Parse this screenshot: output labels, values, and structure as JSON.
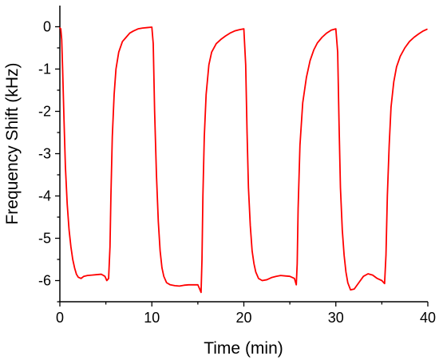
{
  "chart_data": {
    "type": "line",
    "title": "",
    "xlabel": "Time (min)",
    "ylabel": "Frequency Shift (kHz)",
    "xlim": [
      0,
      40
    ],
    "ylim": [
      -6.5,
      0.5
    ],
    "x_ticks": [
      0,
      10,
      20,
      30,
      40
    ],
    "x_tick_labels": [
      "0",
      "10",
      "20",
      "30",
      "40"
    ],
    "y_ticks": [
      0,
      -1,
      -2,
      -3,
      -4,
      -5,
      -6
    ],
    "y_tick_labels": [
      "0",
      "-1",
      "-2",
      "-3",
      "-4",
      "-5",
      "-6"
    ],
    "grid": false,
    "legend": "none",
    "series": [
      {
        "color": "#ff0000",
        "x": [
          0.0,
          0.1,
          0.2,
          0.3,
          0.45,
          0.6,
          0.8,
          1.0,
          1.2,
          1.4,
          1.6,
          1.8,
          2.0,
          2.3,
          2.6,
          3.0,
          3.5,
          4.0,
          4.5,
          4.9,
          5.1,
          5.3,
          5.45,
          5.55,
          5.7,
          5.9,
          6.1,
          6.4,
          6.8,
          7.2,
          7.6,
          8.0,
          8.5,
          9.0,
          9.5,
          10.0,
          10.15,
          10.3,
          10.5,
          10.7,
          10.9,
          11.1,
          11.3,
          11.6,
          12.0,
          12.5,
          13.0,
          13.5,
          14.0,
          14.5,
          15.0,
          15.2,
          15.35,
          15.45,
          15.55,
          15.7,
          15.9,
          16.2,
          16.5,
          17.0,
          17.5,
          18.0,
          18.5,
          19.0,
          19.5,
          20.0,
          20.2,
          20.35,
          20.5,
          20.7,
          20.9,
          21.1,
          21.3,
          21.6,
          22.0,
          22.5,
          23.0,
          23.5,
          24.0,
          24.5,
          25.0,
          25.5,
          25.7,
          25.8,
          25.9,
          26.1,
          26.4,
          26.8,
          27.2,
          27.6,
          28.0,
          28.5,
          29.0,
          29.5,
          30.0,
          30.2,
          30.35,
          30.5,
          30.7,
          30.9,
          31.1,
          31.3,
          31.6,
          32.0,
          32.5,
          33.0,
          33.5,
          34.0,
          34.5,
          35.0,
          35.3,
          35.45,
          35.6,
          35.8,
          36.0,
          36.3,
          36.6,
          37.0,
          37.5,
          38.0,
          38.5,
          39.0,
          39.5,
          39.9
        ],
        "y": [
          -0.03,
          -0.05,
          -0.3,
          -1.0,
          -2.2,
          -3.3,
          -4.2,
          -4.8,
          -5.2,
          -5.5,
          -5.7,
          -5.85,
          -5.92,
          -5.95,
          -5.9,
          -5.88,
          -5.87,
          -5.86,
          -5.85,
          -5.9,
          -6.0,
          -5.95,
          -5.2,
          -4.0,
          -2.6,
          -1.6,
          -1.0,
          -0.6,
          -0.35,
          -0.25,
          -0.15,
          -0.1,
          -0.05,
          -0.03,
          -0.02,
          -0.01,
          -0.4,
          -2.0,
          -3.5,
          -4.6,
          -5.3,
          -5.7,
          -5.9,
          -6.05,
          -6.1,
          -6.12,
          -6.13,
          -6.11,
          -6.1,
          -6.1,
          -6.1,
          -6.2,
          -6.28,
          -5.5,
          -4.0,
          -2.6,
          -1.6,
          -0.9,
          -0.6,
          -0.4,
          -0.3,
          -0.22,
          -0.15,
          -0.1,
          -0.07,
          -0.05,
          -0.9,
          -2.5,
          -3.8,
          -4.7,
          -5.3,
          -5.6,
          -5.8,
          -5.95,
          -6.0,
          -5.98,
          -5.93,
          -5.9,
          -5.88,
          -5.89,
          -5.9,
          -5.95,
          -6.1,
          -5.6,
          -4.3,
          -2.8,
          -1.8,
          -1.2,
          -0.8,
          -0.55,
          -0.38,
          -0.25,
          -0.15,
          -0.08,
          -0.05,
          -0.6,
          -2.3,
          -3.8,
          -4.8,
          -5.4,
          -5.8,
          -6.05,
          -6.22,
          -6.2,
          -6.05,
          -5.9,
          -5.84,
          -5.87,
          -5.95,
          -6.0,
          -6.07,
          -5.4,
          -4.0,
          -2.8,
          -1.9,
          -1.3,
          -0.95,
          -0.7,
          -0.5,
          -0.35,
          -0.25,
          -0.17,
          -0.1,
          -0.06
        ]
      }
    ]
  }
}
